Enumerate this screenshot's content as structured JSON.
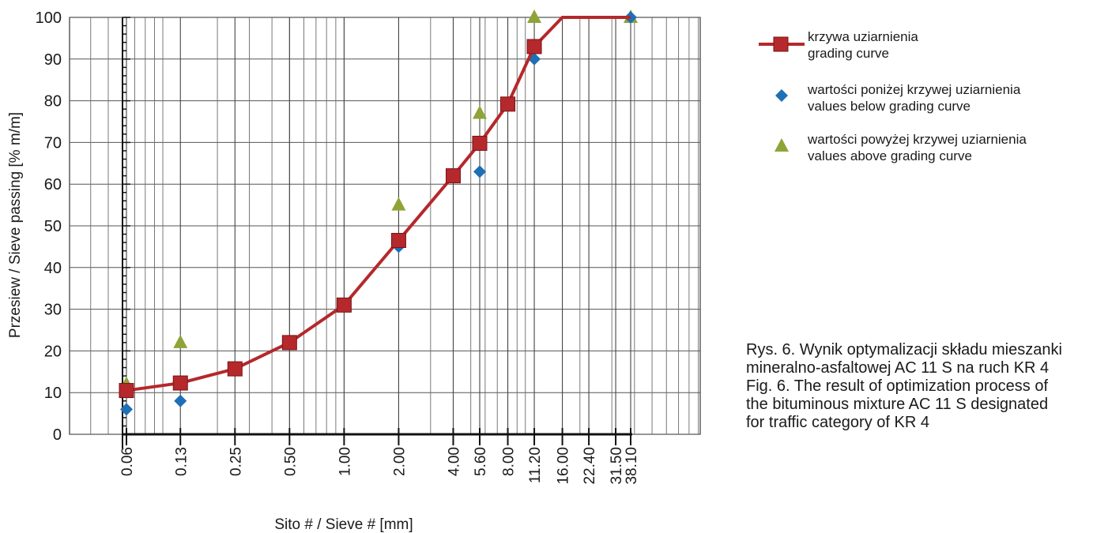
{
  "chart_data": {
    "type": "line",
    "xlabel": "Sito # / Sieve # [mm]",
    "ylabel": "Przesiew / Sieve passing [% m/m]",
    "x_scale": "log",
    "ylim": [
      0,
      100
    ],
    "y_ticks": [
      0,
      10,
      20,
      30,
      40,
      50,
      60,
      70,
      80,
      90,
      100
    ],
    "x_ticks": [
      {
        "value": 0.063,
        "label": "0.06"
      },
      {
        "value": 0.125,
        "label": "0.13"
      },
      {
        "value": 0.25,
        "label": "0.25"
      },
      {
        "value": 0.5,
        "label": "0.50"
      },
      {
        "value": 1,
        "label": "1.00"
      },
      {
        "value": 2,
        "label": "2.00"
      },
      {
        "value": 4,
        "label": "4.00"
      },
      {
        "value": 5.6,
        "label": "5.60"
      },
      {
        "value": 8,
        "label": "8.00"
      },
      {
        "value": 11.2,
        "label": "11.20"
      },
      {
        "value": 16,
        "label": "16.00"
      },
      {
        "value": 22.4,
        "label": "22.40"
      },
      {
        "value": 31.5,
        "label": "31.50"
      },
      {
        "value": 38.1,
        "label": "38.10"
      }
    ],
    "grid": true,
    "legend_position": "right",
    "series": [
      {
        "name": "krzywa uziarnienia",
        "name_en": "grading curve",
        "marker": "square",
        "color": "#b5282b",
        "points": [
          {
            "x": 0.063,
            "y": 10.5
          },
          {
            "x": 0.125,
            "y": 12.3
          },
          {
            "x": 0.25,
            "y": 15.7
          },
          {
            "x": 0.5,
            "y": 22
          },
          {
            "x": 1,
            "y": 31
          },
          {
            "x": 2,
            "y": 46.5
          },
          {
            "x": 4,
            "y": 62
          },
          {
            "x": 5.6,
            "y": 69.8
          },
          {
            "x": 8,
            "y": 79.2
          },
          {
            "x": 11.2,
            "y": 93
          },
          {
            "x": 16,
            "y": 100
          },
          {
            "x": 22.4,
            "y": 100
          },
          {
            "x": 31.5,
            "y": 100
          },
          {
            "x": 38.1,
            "y": 100
          }
        ]
      },
      {
        "name": "wartości poniżej krzywej uziarnienia",
        "name_en": "values below grading curve",
        "marker": "diamond",
        "color": "#1f6fb5",
        "points": [
          {
            "x": 0.063,
            "y": 6
          },
          {
            "x": 0.125,
            "y": 8
          },
          {
            "x": 2,
            "y": 45
          },
          {
            "x": 5.6,
            "y": 63
          },
          {
            "x": 11.2,
            "y": 90
          },
          {
            "x": 38.1,
            "y": 100
          }
        ]
      },
      {
        "name": "wartości powyżej krzywej uziarnienia",
        "name_en": "values above grading curve",
        "marker": "triangle",
        "color": "#8ea437",
        "points": [
          {
            "x": 0.063,
            "y": 12
          },
          {
            "x": 0.125,
            "y": 22
          },
          {
            "x": 2,
            "y": 55
          },
          {
            "x": 5.6,
            "y": 77
          },
          {
            "x": 11.2,
            "y": 100
          },
          {
            "x": 38.1,
            "y": 100
          }
        ]
      }
    ]
  },
  "legend": {
    "items": [
      {
        "line1": "krzywa uziarnienia",
        "line2": "grading curve"
      },
      {
        "line1": "wartości poniżej krzywej uziarnienia",
        "line2": "values below grading curve"
      },
      {
        "line1": "wartości powyżej krzywej uziarnienia",
        "line2": "values above grading curve"
      }
    ]
  },
  "caption": {
    "line1": "Rys. 6. Wynik optymalizacji składu mieszanki",
    "line2": "mineralno-asfaltowej AC 11 S na ruch KR 4",
    "line3": "Fig. 6. The result of optimization process of",
    "line4": "the bituminous mixture AC 11 S designated",
    "line5": "for traffic category of KR 4"
  }
}
